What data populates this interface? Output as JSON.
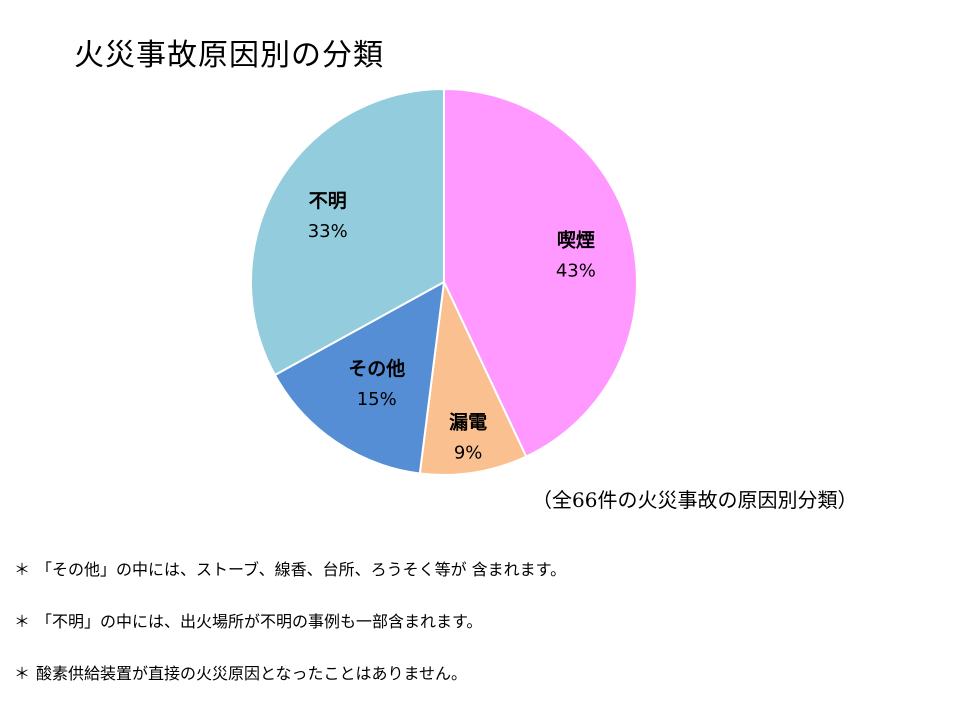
{
  "title": "火災事故原因別の分類",
  "caption": "（全66件の火災事故の原因別分類）",
  "chart_data": {
    "type": "pie",
    "title": "火災事故原因別の分類",
    "total_cases": 66,
    "categories": [
      "喫煙",
      "漏電",
      "その他",
      "不明"
    ],
    "values": [
      43,
      9,
      15,
      33
    ],
    "labels": [
      "43%",
      "9%",
      "15%",
      "33%"
    ],
    "colors": [
      "#FF99FF",
      "#FAC090",
      "#558ED5",
      "#93CDDD"
    ],
    "start": "12 o'clock",
    "direction": "clockwise",
    "legend": "none",
    "data_labels": "inside"
  },
  "notes": [
    {
      "mark": "＊",
      "text": "「その他」の中には、ストーブ、線香、台所、ろうそく等が 含まれます。"
    },
    {
      "mark": "＊",
      "text": "「不明」の中には、出火場所が不明の事例も一部含まれます。"
    },
    {
      "mark": "＊",
      "text": "酸素供給装置が直接の火災原因となったことはありません。"
    }
  ]
}
